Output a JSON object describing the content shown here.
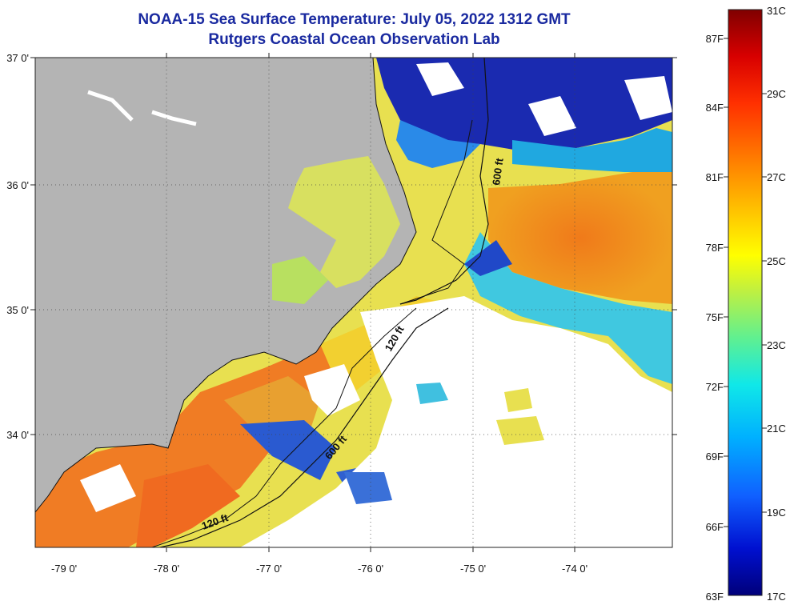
{
  "header": {
    "title": "NOAA-15 Sea Surface Temperature:  July 05, 2022 1312 GMT",
    "subtitle": "Rutgers Coastal Ocean Observation Lab"
  },
  "map": {
    "lat_labels": [
      "37 0'",
      "36 0'",
      "35 0'",
      "34 0'"
    ],
    "lon_labels": [
      "-79 0'",
      "-78 0'",
      "-77 0'",
      "-76 0'",
      "-75 0'",
      "-74 0'"
    ],
    "isobath_labels": [
      "600 ft",
      "120 ft",
      "600 ft",
      "120 ft"
    ],
    "colors": {
      "land": "#b4b4b4",
      "cloud": "#ffffff"
    }
  },
  "colorbar": {
    "fahrenheit_labels": [
      "87F",
      "84F",
      "81F",
      "78F",
      "75F",
      "72F",
      "69F",
      "66F",
      "63F"
    ],
    "celsius_labels": [
      "31C",
      "29C",
      "27C",
      "25C",
      "23C",
      "21C",
      "19C",
      "17C"
    ],
    "min_c": 17,
    "max_c": 31,
    "stops": [
      "#00007a",
      "#0010d0",
      "#1060ff",
      "#00b0ff",
      "#10e8e8",
      "#60f090",
      "#c0f040",
      "#ffff00",
      "#ffc000",
      "#ff8000",
      "#ff3000",
      "#d80000",
      "#800000"
    ]
  }
}
